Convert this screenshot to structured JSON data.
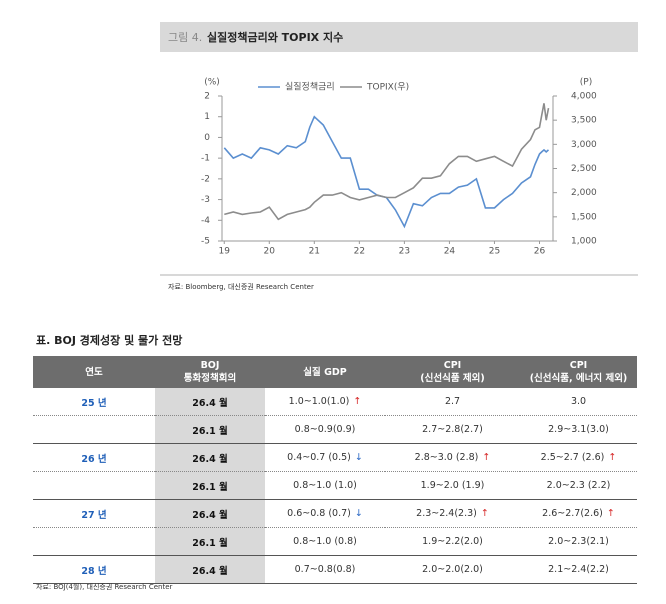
{
  "chart_data": {
    "type": "line",
    "label": "그림 4.",
    "title": "실질정책금리와 TOPIX 지수",
    "ylabel": "(%)",
    "y2label": "(P)",
    "source": "자료: Bloomberg, 대신증권 Research Center",
    "x": [
      19.0,
      19.2,
      19.4,
      19.6,
      19.8,
      20.0,
      20.2,
      20.4,
      20.6,
      20.8,
      20.9,
      21.0,
      21.2,
      21.4,
      21.6,
      21.8,
      22.0,
      22.2,
      22.4,
      22.6,
      22.8,
      23.0,
      23.2,
      23.4,
      23.6,
      23.8,
      24.0,
      24.2,
      24.4,
      24.6,
      24.8,
      25.0,
      25.2,
      25.4,
      25.6,
      25.8,
      25.9,
      26.0,
      26.05,
      26.1,
      26.15,
      26.2
    ],
    "series": [
      {
        "name": "실질정책금리",
        "color": "#5b8fd0",
        "values": [
          -0.5,
          -1.0,
          -0.8,
          -1.0,
          -0.5,
          -0.6,
          -0.8,
          -0.4,
          -0.5,
          -0.2,
          0.5,
          1.0,
          0.6,
          -0.2,
          -1.0,
          -1.0,
          -2.5,
          -2.5,
          -2.8,
          -2.9,
          -3.5,
          -4.3,
          -3.2,
          -3.3,
          -2.9,
          -2.7,
          -2.7,
          -2.4,
          -2.3,
          -2.0,
          -3.4,
          -3.4,
          -3.0,
          -2.7,
          -2.2,
          -1.9,
          -1.3,
          -0.8,
          -0.7,
          -0.6,
          -0.7,
          -0.6
        ]
      },
      {
        "name": "TOPIX(우)",
        "color": "#8c8c8c",
        "axis": "y2",
        "values": [
          1550,
          1600,
          1550,
          1580,
          1600,
          1700,
          1450,
          1550,
          1600,
          1650,
          1700,
          1800,
          1950,
          1950,
          2000,
          1900,
          1850,
          1900,
          1950,
          1900,
          1900,
          2000,
          2100,
          2300,
          2300,
          2350,
          2600,
          2750,
          2750,
          2650,
          2700,
          2750,
          2650,
          2550,
          2900,
          3100,
          3300,
          3350,
          3600,
          3850,
          3500,
          3750
        ]
      }
    ],
    "xlim": [
      18.95,
      26.3
    ],
    "xticks": [
      19,
      20,
      21,
      22,
      23,
      24,
      25,
      26
    ],
    "ylim": [
      -5,
      2
    ],
    "yticks": [
      -5,
      -4,
      -3,
      -2,
      -1,
      0,
      1,
      2
    ],
    "y2lim": [
      1000,
      4000
    ],
    "y2ticks": [
      {
        "value": 1000,
        "label": "1,000"
      },
      {
        "value": 1500,
        "label": "1,500"
      },
      {
        "value": 2000,
        "label": "2,000"
      },
      {
        "value": 2500,
        "label": "2,500"
      },
      {
        "value": 3000,
        "label": "3,000"
      },
      {
        "value": 3500,
        "label": "3,500"
      },
      {
        "value": 4000,
        "label": "4,000"
      }
    ],
    "legend": "top"
  },
  "table": {
    "title": "표. BOJ 경제성장 및 물가 전망",
    "header": [
      [
        "연도"
      ],
      [
        "BOJ",
        "통화정책회의"
      ],
      [
        "실질 GDP"
      ],
      [
        "CPI",
        "(신선식품 제외)"
      ],
      [
        "CPI",
        "(신선식품, 에너지 제외)"
      ]
    ],
    "rows": [
      [
        "25 년",
        "26.4 월",
        "1.0~1.0(1.0)",
        "2.7",
        "3.0"
      ],
      [
        null,
        "26.1 월",
        "0.8~0.9(0.9)",
        "2.7~2.8(2.7)",
        "2.9~3.1(3.0)"
      ],
      [
        "26 년",
        "26.4 월",
        "0.4~0.7 (0.5)",
        "2.8~3.0 (2.8)",
        "2.5~2.7 (2.6)"
      ],
      [
        null,
        "26.1 월",
        "0.8~1.0 (1.0)",
        "1.9~2.0 (1.9)",
        "2.0~2.3 (2.2)"
      ],
      [
        "27 년",
        "26.4 월",
        "0.6~0.8 (0.7)",
        "2.3~2.4(2.3)",
        "2.6~2.7(2.6)"
      ],
      [
        null,
        "26.1 월",
        "0.8~1.0 (0.8)",
        "1.9~2.2(2.0)",
        "2.0~2.3(2.1)"
      ],
      [
        "28 년",
        "26.4 월",
        "0.7~0.8(0.8)",
        "2.0~2.0(2.0)",
        "2.1~2.4(2.2)"
      ]
    ],
    "arrows": [
      [
        null,
        null,
        "↑",
        null,
        null
      ],
      [
        null,
        null,
        null,
        null,
        null
      ],
      [
        null,
        null,
        "↓",
        "↑",
        "↑"
      ],
      [
        null,
        null,
        null,
        null,
        null
      ],
      [
        null,
        null,
        "↓",
        "↑",
        "↑"
      ],
      [
        null,
        null,
        null,
        null,
        null
      ],
      [
        null,
        null,
        null,
        null,
        null
      ]
    ],
    "source": "자료: BOJ(4월), 대신증권 Research Center"
  }
}
